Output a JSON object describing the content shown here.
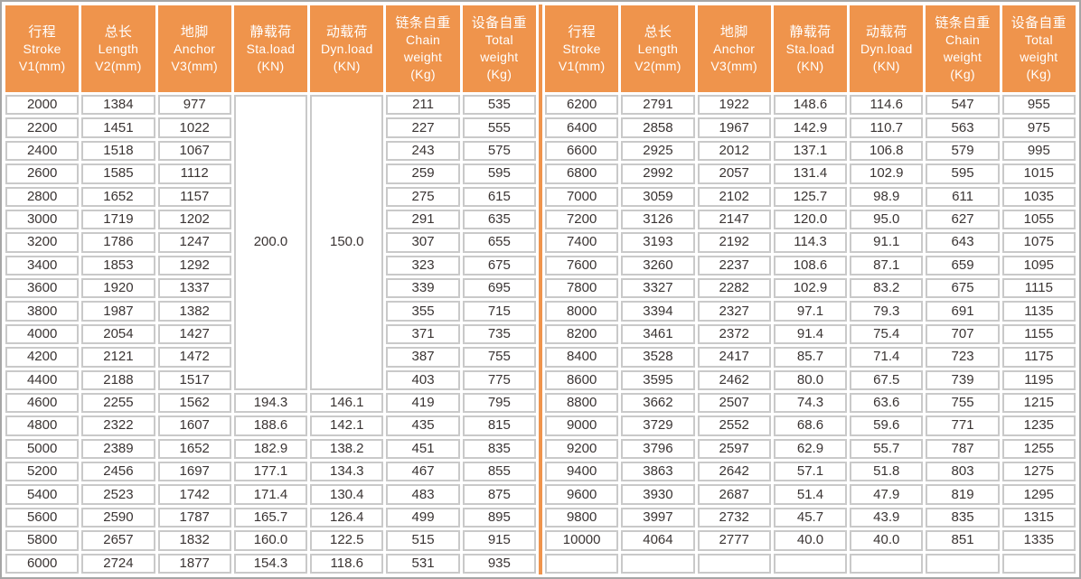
{
  "colors": {
    "header_bg": "#EF944C",
    "header_text": "#FFFFFF",
    "divider": "#EF944C",
    "cell_border": "#C9C9C9",
    "outer_border": "#A6A6A6",
    "cell_text": "#3A3433"
  },
  "columns": [
    {
      "id": "stroke",
      "lines": [
        "行程",
        "Stroke",
        "V1(mm)"
      ]
    },
    {
      "id": "length",
      "lines": [
        "总长",
        "Length",
        "V2(mm)"
      ]
    },
    {
      "id": "anchor",
      "lines": [
        "地脚",
        "Anchor",
        "V3(mm)"
      ]
    },
    {
      "id": "static-load",
      "lines": [
        "静载荷",
        "Sta.load",
        "(KN)"
      ]
    },
    {
      "id": "dynamic-load",
      "lines": [
        "动载荷",
        "Dyn.load",
        "(KN)"
      ]
    },
    {
      "id": "chain-weight",
      "lines": [
        "链条自重",
        "Chain",
        "weight",
        "(Kg)"
      ]
    },
    {
      "id": "total-weight",
      "lines": [
        "设备自重",
        "Total",
        "weight",
        "(Kg)"
      ]
    }
  ],
  "left_table": {
    "rows": [
      [
        "2000",
        "1384",
        "977",
        {
          "value": "200.0",
          "rowspan": 13
        },
        {
          "value": "150.0",
          "rowspan": 13
        },
        "211",
        "535"
      ],
      [
        "2200",
        "1451",
        "1022",
        "227",
        "555"
      ],
      [
        "2400",
        "1518",
        "1067",
        "243",
        "575"
      ],
      [
        "2600",
        "1585",
        "1112",
        "259",
        "595"
      ],
      [
        "2800",
        "1652",
        "1157",
        "275",
        "615"
      ],
      [
        "3000",
        "1719",
        "1202",
        "291",
        "635"
      ],
      [
        "3200",
        "1786",
        "1247",
        "307",
        "655"
      ],
      [
        "3400",
        "1853",
        "1292",
        "323",
        "675"
      ],
      [
        "3600",
        "1920",
        "1337",
        "339",
        "695"
      ],
      [
        "3800",
        "1987",
        "1382",
        "355",
        "715"
      ],
      [
        "4000",
        "2054",
        "1427",
        "371",
        "735"
      ],
      [
        "4200",
        "2121",
        "1472",
        "387",
        "755"
      ],
      [
        "4400",
        "2188",
        "1517",
        "403",
        "775"
      ],
      [
        "4600",
        "2255",
        "1562",
        "194.3",
        "146.1",
        "419",
        "795"
      ],
      [
        "4800",
        "2322",
        "1607",
        "188.6",
        "142.1",
        "435",
        "815"
      ],
      [
        "5000",
        "2389",
        "1652",
        "182.9",
        "138.2",
        "451",
        "835"
      ],
      [
        "5200",
        "2456",
        "1697",
        "177.1",
        "134.3",
        "467",
        "855"
      ],
      [
        "5400",
        "2523",
        "1742",
        "171.4",
        "130.4",
        "483",
        "875"
      ],
      [
        "5600",
        "2590",
        "1787",
        "165.7",
        "126.4",
        "499",
        "895"
      ],
      [
        "5800",
        "2657",
        "1832",
        "160.0",
        "122.5",
        "515",
        "915"
      ],
      [
        "6000",
        "2724",
        "1877",
        "154.3",
        "118.6",
        "531",
        "935"
      ]
    ]
  },
  "right_table": {
    "rows": [
      [
        "6200",
        "2791",
        "1922",
        "148.6",
        "114.6",
        "547",
        "955"
      ],
      [
        "6400",
        "2858",
        "1967",
        "142.9",
        "110.7",
        "563",
        "975"
      ],
      [
        "6600",
        "2925",
        "2012",
        "137.1",
        "106.8",
        "579",
        "995"
      ],
      [
        "6800",
        "2992",
        "2057",
        "131.4",
        "102.9",
        "595",
        "1015"
      ],
      [
        "7000",
        "3059",
        "2102",
        "125.7",
        "98.9",
        "611",
        "1035"
      ],
      [
        "7200",
        "3126",
        "2147",
        "120.0",
        "95.0",
        "627",
        "1055"
      ],
      [
        "7400",
        "3193",
        "2192",
        "114.3",
        "91.1",
        "643",
        "1075"
      ],
      [
        "7600",
        "3260",
        "2237",
        "108.6",
        "87.1",
        "659",
        "1095"
      ],
      [
        "7800",
        "3327",
        "2282",
        "102.9",
        "83.2",
        "675",
        "1115"
      ],
      [
        "8000",
        "3394",
        "2327",
        "97.1",
        "79.3",
        "691",
        "1135"
      ],
      [
        "8200",
        "3461",
        "2372",
        "91.4",
        "75.4",
        "707",
        "1155"
      ],
      [
        "8400",
        "3528",
        "2417",
        "85.7",
        "71.4",
        "723",
        "1175"
      ],
      [
        "8600",
        "3595",
        "2462",
        "80.0",
        "67.5",
        "739",
        "1195"
      ],
      [
        "8800",
        "3662",
        "2507",
        "74.3",
        "63.6",
        "755",
        "1215"
      ],
      [
        "9000",
        "3729",
        "2552",
        "68.6",
        "59.6",
        "771",
        "1235"
      ],
      [
        "9200",
        "3796",
        "2597",
        "62.9",
        "55.7",
        "787",
        "1255"
      ],
      [
        "9400",
        "3863",
        "2642",
        "57.1",
        "51.8",
        "803",
        "1275"
      ],
      [
        "9600",
        "3930",
        "2687",
        "51.4",
        "47.9",
        "819",
        "1295"
      ],
      [
        "9800",
        "3997",
        "2732",
        "45.7",
        "43.9",
        "835",
        "1315"
      ],
      [
        "10000",
        "4064",
        "2777",
        "40.0",
        "40.0",
        "851",
        "1335"
      ],
      [
        "",
        "",
        "",
        "",
        "",
        "",
        ""
      ]
    ]
  }
}
